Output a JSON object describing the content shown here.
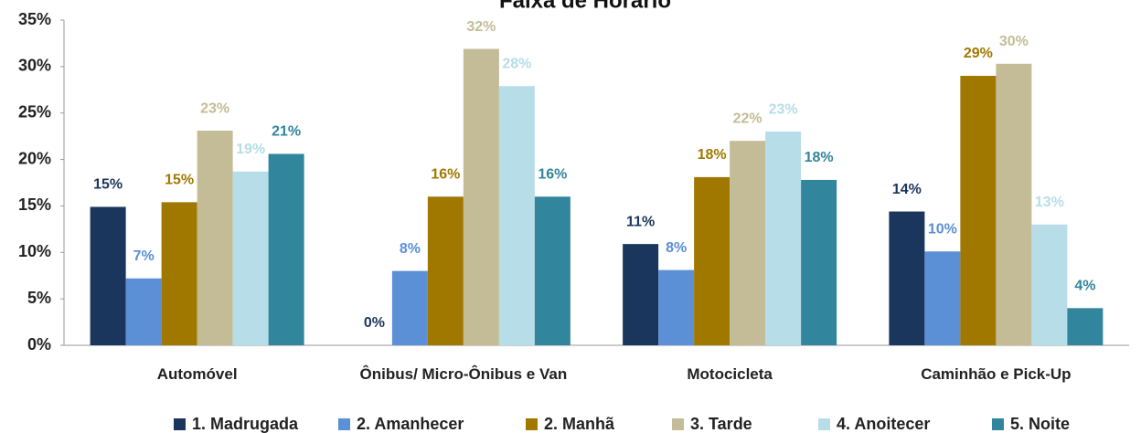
{
  "chart_data": {
    "type": "bar",
    "title": "Faixa de Horário",
    "categories": [
      "Automóvel",
      "Ônibus/ Micro-Ônibus e Van",
      "Motocicleta",
      "Caminhão e Pick-Up"
    ],
    "series": [
      {
        "name": "1. Madrugada",
        "color": "#1b365d",
        "values": [
          14.9,
          0,
          10.9,
          14.4
        ],
        "value_labels": [
          "15%",
          "0%",
          "11%",
          "14%"
        ]
      },
      {
        "name": "2. Amanhecer",
        "color": "#5b8fd6",
        "values": [
          7.2,
          8.0,
          8.1,
          10.1
        ],
        "value_labels": [
          "7%",
          "8%",
          "8%",
          "10%"
        ]
      },
      {
        "name": "2. Manhã",
        "color": "#a07800",
        "values": [
          15.4,
          16.0,
          18.1,
          29.0
        ],
        "value_labels": [
          "15%",
          "16%",
          "18%",
          "29%"
        ]
      },
      {
        "name": "3. Tarde",
        "color": "#c4bc96",
        "values": [
          23.1,
          31.9,
          22.0,
          30.3
        ],
        "value_labels": [
          "23%",
          "32%",
          "22%",
          "30%"
        ]
      },
      {
        "name": "4. Anoitecer",
        "color": "#b7dde8",
        "values": [
          18.7,
          27.9,
          23.0,
          13.0
        ],
        "value_labels": [
          "19%",
          "28%",
          "23%",
          "13%"
        ]
      },
      {
        "name": "5. Noite",
        "color": "#31859c",
        "values": [
          20.6,
          16.0,
          17.8,
          4.0
        ],
        "value_labels": [
          "21%",
          "16%",
          "18%",
          "4%"
        ]
      }
    ],
    "ylim": [
      0,
      35
    ],
    "yticks": [
      {
        "value": 0,
        "label": "0%"
      },
      {
        "value": 5,
        "label": "5%"
      },
      {
        "value": 10,
        "label": "10%"
      },
      {
        "value": 15,
        "label": "15%"
      },
      {
        "value": 20,
        "label": "20%"
      },
      {
        "value": 25,
        "label": "25%"
      },
      {
        "value": 30,
        "label": "30%"
      },
      {
        "value": 35,
        "label": "35%"
      }
    ],
    "legend": "bottom"
  }
}
